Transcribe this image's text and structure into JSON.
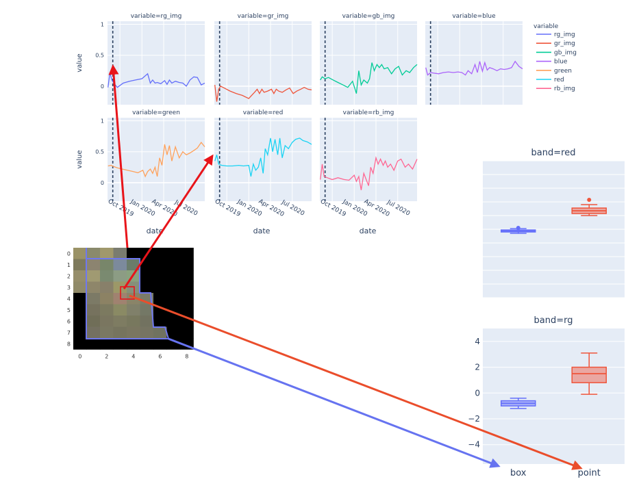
{
  "colors": {
    "rg_img": "#636efa",
    "gr_img": "#EF553B",
    "gb_img": "#00cc96",
    "blue": "#ab63fa",
    "green": "#FFA15A",
    "red": "#19d3f3",
    "rb_img": "#FF6692",
    "plot_bg": "#e5ecf6",
    "grid": "#ffffff",
    "dashed_line": "#2a3f5f",
    "arrow_red": "#e8141a",
    "arrow_orange": "#ea4d2b",
    "arrow_blue": "#6673f0",
    "polygon": "#6f78f0"
  },
  "chart_data": [
    {
      "type": "line",
      "name": "timeseries-facets",
      "xlabel": "date",
      "ylabel": "value",
      "x_range": [
        "2019-08-10",
        "2020-09-20"
      ],
      "x_ticks": [
        "Oct 2019",
        "Jan 2020",
        "Apr 2020",
        "Jul 2020"
      ],
      "x_tick_dates": [
        "2019-10-01",
        "2020-01-01",
        "2020-04-01",
        "2020-07-01"
      ],
      "vline_date": "2019-09-01",
      "legend_title": "variable",
      "legend_position": "right",
      "grid": true,
      "row_ticks": [
        [
          "0",
          "0.5",
          "1"
        ],
        [
          "0",
          "0.5",
          "1"
        ]
      ],
      "row_tick_values": [
        0,
        0.5,
        1
      ],
      "row_ylim": [
        [
          -0.3,
          1.05
        ],
        [
          -0.3,
          1.05
        ]
      ],
      "stray_label": "3",
      "panels": [
        {
          "title": "variable=rg_img",
          "series": "rg_img",
          "row": 0,
          "col": 0,
          "x": [
            "2019-08-12",
            "2019-08-20",
            "2019-08-28",
            "2019-09-05",
            "2019-09-20",
            "2019-10-15",
            "2019-11-10",
            "2019-12-05",
            "2020-01-01",
            "2020-01-25",
            "2020-02-05",
            "2020-02-15",
            "2020-02-25",
            "2020-03-05",
            "2020-03-20",
            "2020-04-05",
            "2020-04-15",
            "2020-04-25",
            "2020-05-05",
            "2020-05-20",
            "2020-06-05",
            "2020-06-20",
            "2020-07-05",
            "2020-07-20",
            "2020-08-05",
            "2020-08-20",
            "2020-09-05",
            "2020-09-20"
          ],
          "y": [
            -0.02,
            0.22,
            0.1,
            0.05,
            -0.02,
            0.05,
            0.08,
            0.1,
            0.12,
            0.2,
            0.05,
            0.1,
            0.05,
            0.06,
            0.04,
            0.09,
            0.03,
            0.1,
            0.05,
            0.08,
            0.06,
            0.05,
            0.0,
            0.1,
            0.15,
            0.14,
            0.02,
            0.05
          ]
        },
        {
          "title": "variable=gr_img",
          "series": "gr_img",
          "row": 0,
          "col": 1,
          "x": [
            "2019-08-12",
            "2019-08-20",
            "2019-08-28",
            "2019-09-05",
            "2019-09-20",
            "2019-10-15",
            "2019-11-10",
            "2019-12-05",
            "2020-01-01",
            "2020-01-25",
            "2020-02-05",
            "2020-02-15",
            "2020-02-25",
            "2020-03-05",
            "2020-03-20",
            "2020-04-05",
            "2020-04-15",
            "2020-04-25",
            "2020-05-05",
            "2020-05-20",
            "2020-06-05",
            "2020-06-20",
            "2020-07-05",
            "2020-07-20",
            "2020-08-05",
            "2020-08-20",
            "2020-09-05",
            "2020-09-20"
          ],
          "y": [
            0.02,
            -0.25,
            -0.05,
            0.0,
            -0.03,
            -0.08,
            -0.12,
            -0.15,
            -0.2,
            -0.1,
            -0.05,
            -0.12,
            -0.05,
            -0.1,
            -0.08,
            -0.05,
            -0.12,
            -0.05,
            -0.08,
            -0.1,
            -0.06,
            -0.03,
            -0.12,
            -0.08,
            -0.05,
            -0.02,
            -0.05,
            -0.06
          ]
        },
        {
          "title": "variable=gb_img",
          "series": "gb_img",
          "row": 0,
          "col": 2,
          "x": [
            "2019-08-12",
            "2019-08-20",
            "2019-09-01",
            "2019-09-15",
            "2019-10-05",
            "2019-10-25",
            "2019-11-15",
            "2019-12-05",
            "2019-12-25",
            "2020-01-10",
            "2020-01-20",
            "2020-01-30",
            "2020-02-10",
            "2020-02-25",
            "2020-03-05",
            "2020-03-15",
            "2020-03-25",
            "2020-04-05",
            "2020-04-15",
            "2020-04-25",
            "2020-05-05",
            "2020-05-20",
            "2020-06-05",
            "2020-06-20",
            "2020-07-05",
            "2020-07-20",
            "2020-08-05",
            "2020-08-20",
            "2020-09-05",
            "2020-09-20"
          ],
          "y": [
            0.1,
            0.15,
            0.12,
            0.14,
            0.1,
            0.06,
            0.02,
            -0.02,
            0.08,
            -0.12,
            0.25,
            0.02,
            0.1,
            0.05,
            0.12,
            0.38,
            0.25,
            0.35,
            0.3,
            0.35,
            0.28,
            0.3,
            0.2,
            0.28,
            0.32,
            0.18,
            0.25,
            0.22,
            0.3,
            0.35
          ]
        },
        {
          "title": "variable=blue",
          "series": "blue",
          "row": 0,
          "col": 3,
          "x": [
            "2019-08-12",
            "2019-08-20",
            "2019-09-01",
            "2019-09-15",
            "2019-10-05",
            "2019-10-25",
            "2019-11-15",
            "2019-12-05",
            "2019-12-25",
            "2020-01-10",
            "2020-01-25",
            "2020-02-05",
            "2020-02-20",
            "2020-03-05",
            "2020-03-15",
            "2020-03-25",
            "2020-04-05",
            "2020-04-15",
            "2020-04-25",
            "2020-05-05",
            "2020-05-20",
            "2020-06-05",
            "2020-06-20",
            "2020-07-05",
            "2020-07-20",
            "2020-08-05",
            "2020-08-20",
            "2020-09-05",
            "2020-09-20"
          ],
          "y": [
            0.3,
            0.18,
            0.22,
            0.21,
            0.2,
            0.22,
            0.23,
            0.22,
            0.23,
            0.22,
            0.18,
            0.25,
            0.2,
            0.35,
            0.22,
            0.4,
            0.24,
            0.38,
            0.26,
            0.3,
            0.28,
            0.25,
            0.28,
            0.27,
            0.28,
            0.3,
            0.4,
            0.32,
            0.28
          ]
        },
        {
          "title": "variable=green",
          "series": "green",
          "row": 1,
          "col": 0,
          "x": [
            "2019-08-12",
            "2019-08-25",
            "2019-09-05",
            "2019-09-20",
            "2019-10-10",
            "2019-11-01",
            "2019-11-25",
            "2019-12-15",
            "2020-01-05",
            "2020-01-15",
            "2020-01-25",
            "2020-02-05",
            "2020-02-15",
            "2020-02-25",
            "2020-03-05",
            "2020-03-15",
            "2020-03-25",
            "2020-04-05",
            "2020-04-15",
            "2020-04-25",
            "2020-05-05",
            "2020-05-20",
            "2020-06-05",
            "2020-06-20",
            "2020-07-05",
            "2020-07-20",
            "2020-08-05",
            "2020-08-20",
            "2020-09-05",
            "2020-09-20"
          ],
          "y": [
            0.27,
            0.28,
            0.26,
            0.24,
            0.22,
            0.2,
            0.18,
            0.16,
            0.2,
            0.1,
            0.18,
            0.22,
            0.15,
            0.25,
            0.1,
            0.4,
            0.28,
            0.62,
            0.45,
            0.6,
            0.35,
            0.58,
            0.4,
            0.5,
            0.45,
            0.48,
            0.52,
            0.56,
            0.65,
            0.58
          ]
        },
        {
          "title": "variable=red",
          "series": "red",
          "row": 1,
          "col": 1,
          "x": [
            "2019-08-12",
            "2019-08-20",
            "2019-08-28",
            "2019-09-10",
            "2019-10-01",
            "2019-10-25",
            "2019-11-20",
            "2019-12-10",
            "2020-01-01",
            "2020-01-10",
            "2020-01-20",
            "2020-01-30",
            "2020-02-10",
            "2020-02-20",
            "2020-03-01",
            "2020-03-10",
            "2020-03-20",
            "2020-04-01",
            "2020-04-10",
            "2020-04-20",
            "2020-05-01",
            "2020-05-10",
            "2020-05-20",
            "2020-06-01",
            "2020-06-15",
            "2020-07-01",
            "2020-07-15",
            "2020-08-01",
            "2020-08-15",
            "2020-09-01",
            "2020-09-20"
          ],
          "y": [
            0.35,
            0.45,
            0.3,
            0.28,
            0.27,
            0.27,
            0.28,
            0.27,
            0.28,
            0.1,
            0.3,
            0.2,
            0.25,
            0.4,
            0.15,
            0.55,
            0.45,
            0.72,
            0.5,
            0.7,
            0.45,
            0.72,
            0.4,
            0.6,
            0.55,
            0.65,
            0.7,
            0.72,
            0.68,
            0.66,
            0.62
          ]
        },
        {
          "title": "variable=rb_img",
          "series": "rb_img",
          "row": 1,
          "col": 2,
          "x": [
            "2019-08-12",
            "2019-08-20",
            "2019-08-28",
            "2019-09-10",
            "2019-10-01",
            "2019-10-25",
            "2019-11-20",
            "2019-12-10",
            "2020-01-01",
            "2020-01-10",
            "2020-01-20",
            "2020-01-30",
            "2020-02-10",
            "2020-02-20",
            "2020-03-01",
            "2020-03-10",
            "2020-03-20",
            "2020-04-01",
            "2020-04-10",
            "2020-04-20",
            "2020-05-01",
            "2020-05-10",
            "2020-05-20",
            "2020-06-01",
            "2020-06-15",
            "2020-07-01",
            "2020-07-15",
            "2020-08-01",
            "2020-08-15",
            "2020-09-01",
            "2020-09-20"
          ],
          "y": [
            0.05,
            0.3,
            0.1,
            0.08,
            0.05,
            0.08,
            0.05,
            0.04,
            0.12,
            0.02,
            0.1,
            -0.12,
            0.15,
            0.05,
            -0.05,
            0.25,
            0.15,
            0.4,
            0.3,
            0.38,
            0.28,
            0.35,
            0.25,
            0.3,
            0.2,
            0.35,
            0.38,
            0.25,
            0.3,
            0.22,
            0.38
          ]
        }
      ],
      "legend": [
        "rg_img",
        "gr_img",
        "gb_img",
        "blue",
        "green",
        "red",
        "rb_img"
      ]
    },
    {
      "type": "heatmap",
      "name": "pixel-grid",
      "x_ticks": [
        "0",
        "2",
        "4",
        "6",
        "8"
      ],
      "y_ticks": [
        "0",
        "1",
        "2",
        "3",
        "4",
        "5",
        "6",
        "7",
        "8"
      ],
      "x_range": [
        -0.5,
        8.5
      ],
      "y_range": [
        -0.5,
        8.5
      ],
      "highlight_cell": [
        4,
        4
      ],
      "cells": [
        [
          "#9a9266",
          "#8a8a6c",
          "#a0986c",
          "#7a7c70",
          "#000000",
          "#000000",
          "#000000",
          "#000000",
          "#000000"
        ],
        [
          "#7e7a5c",
          "#8c8470",
          "#78866a",
          "#7c8a9c",
          "#6a7c6a",
          "#000000",
          "#000000",
          "#000000",
          "#000000"
        ],
        [
          "#968e6a",
          "#a09a72",
          "#7a8a70",
          "#8c9c84",
          "#8aa27e",
          "#000000",
          "#000000",
          "#000000",
          "#000000"
        ],
        [
          "#908a68",
          "#8e866a",
          "#88806a",
          "#9c9868",
          "#86907a",
          "#000000",
          "#000000",
          "#000000",
          "#000000"
        ],
        [
          "#000000",
          "#7c7a66",
          "#8c8264",
          "#a08270",
          "#8a8468",
          "#7a7c68",
          "#000000",
          "#000000",
          "#000000"
        ],
        [
          "#000000",
          "#76725e",
          "#7c7a60",
          "#8a8a64",
          "#80806a",
          "#747866",
          "#000000",
          "#000000",
          "#000000"
        ],
        [
          "#000000",
          "#706e58",
          "#7a7660",
          "#7e7c62",
          "#78785e",
          "#727260",
          "#000000",
          "#000000",
          "#000000"
        ],
        [
          "#000000",
          "#747060",
          "#7a7862",
          "#76745e",
          "#7a7660",
          "#767462",
          "#707260",
          "#000000",
          "#000000"
        ],
        [
          "#000000",
          "#000000",
          "#000000",
          "#000000",
          "#000000",
          "#000000",
          "#000000",
          "#000000",
          "#000000"
        ]
      ]
    },
    {
      "type": "box",
      "name": "band-red-box",
      "title": "band=red",
      "categories": [
        "box",
        "point"
      ],
      "ylim": [
        -1,
        1
      ],
      "grid_values": [
        -1,
        -0.8,
        -0.6,
        -0.4,
        -0.2,
        0,
        0.2,
        0.4,
        0.6,
        0.8,
        1
      ],
      "boxes": [
        {
          "category": "box",
          "color": "#636efa",
          "min": -0.06,
          "q1": -0.04,
          "median": -0.025,
          "q3": -0.01,
          "max": 0.01,
          "outliers": [
            0.02
          ]
        },
        {
          "category": "point",
          "color": "#EF553B",
          "min": 0.2,
          "q1": 0.23,
          "median": 0.27,
          "q3": 0.31,
          "max": 0.36,
          "outliers": [
            0.43
          ]
        }
      ]
    },
    {
      "type": "box",
      "name": "band-rg-box",
      "title": "band=rg",
      "categories": [
        "box",
        "point"
      ],
      "y_ticks": [
        "4",
        "2",
        "0",
        "−2",
        "−4"
      ],
      "y_tick_values": [
        4,
        2,
        0,
        -2,
        -4
      ],
      "ylim": [
        -5.5,
        5
      ],
      "boxes": [
        {
          "category": "box",
          "color": "#636efa",
          "min": -1.2,
          "q1": -1.0,
          "median": -0.8,
          "q3": -0.6,
          "max": -0.4
        },
        {
          "category": "point",
          "color": "#EF553B",
          "min": -0.1,
          "q1": 0.8,
          "median": 1.5,
          "q3": 2.0,
          "max": 3.1
        }
      ]
    }
  ]
}
